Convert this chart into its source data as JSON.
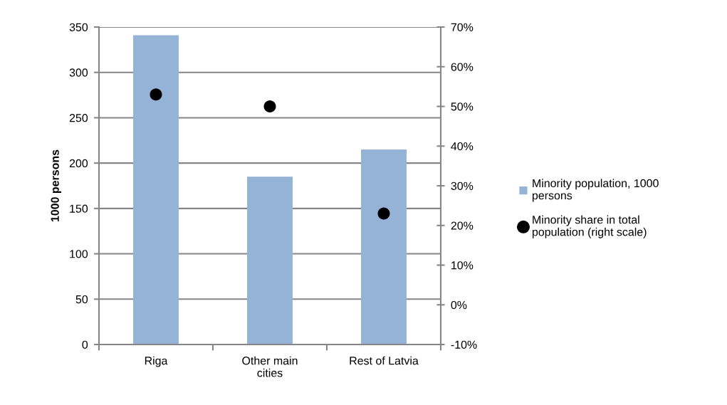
{
  "chart_data": {
    "type": "bar",
    "categories": [
      "Riga",
      "Other main cities",
      "Rest of Latvia"
    ],
    "ylabel": "1000 persons",
    "series": [
      {
        "name": "Minority population, 1000 persons",
        "color": "#95b3d7",
        "values": [
          341,
          185,
          215
        ]
      },
      {
        "name": "Minority share in total population (right scale)",
        "type": "scatter",
        "color": "#000000",
        "axis": "y2",
        "marker": "circle",
        "values": [
          53,
          50,
          23
        ]
      }
    ],
    "ylim": [
      0,
      350
    ],
    "yticks": [
      0,
      50,
      100,
      150,
      200,
      250,
      300,
      350
    ],
    "y2lim": [
      -10,
      70
    ],
    "y2ticks": [
      {
        "value": -10,
        "label": "-10%"
      },
      {
        "value": 0,
        "label": "0%"
      },
      {
        "value": 10,
        "label": "10%"
      },
      {
        "value": 20,
        "label": "20%"
      },
      {
        "value": 30,
        "label": "30%"
      },
      {
        "value": 40,
        "label": "40%"
      },
      {
        "value": 50,
        "label": "50%"
      },
      {
        "value": 60,
        "label": "60%"
      },
      {
        "value": 70,
        "label": "70%"
      }
    ],
    "grid": "y",
    "legend": "right"
  }
}
